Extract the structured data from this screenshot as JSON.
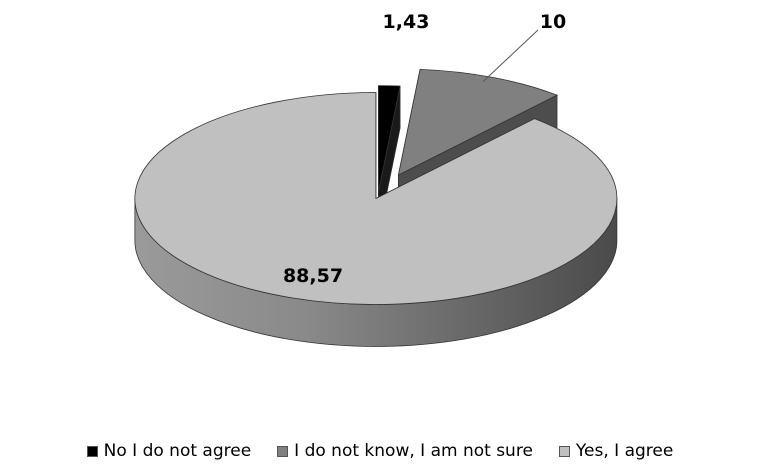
{
  "chart_data": {
    "type": "pie",
    "title": "",
    "style": "3d-exploded",
    "categories": [
      "No I do not agree",
      "I do not know, I am not sure",
      "Yes, I agree"
    ],
    "values": [
      1.43,
      10,
      88.57
    ],
    "value_labels": [
      "1,43",
      "10",
      "88,57"
    ],
    "colors": [
      "#000000",
      "#808080",
      "#c0c0c0"
    ],
    "legend_position": "bottom"
  }
}
